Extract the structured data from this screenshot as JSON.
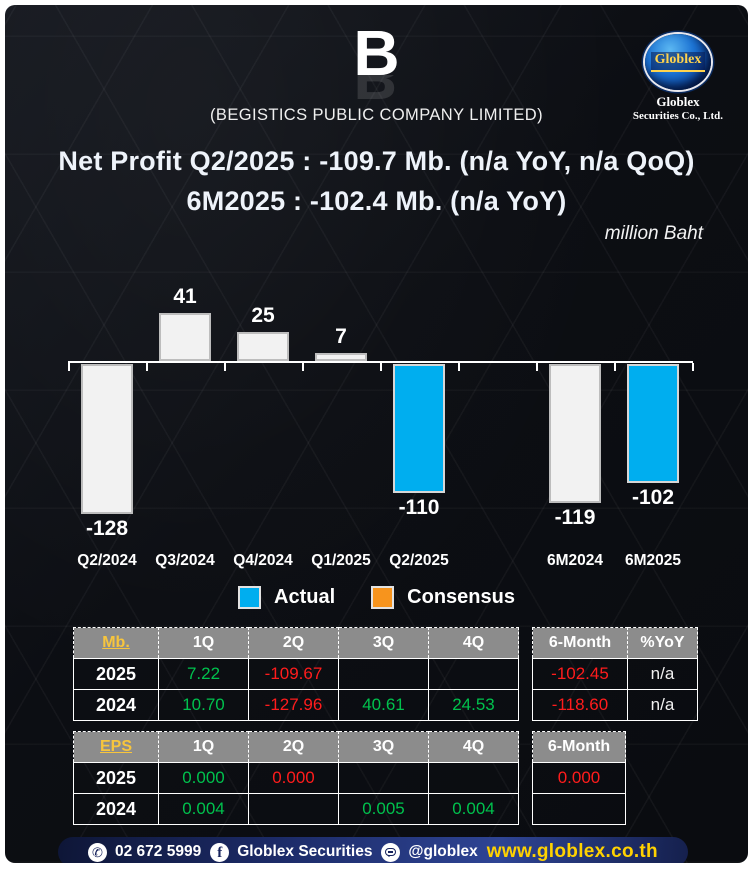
{
  "header": {
    "ticker": "B",
    "company": "(BEGISTICS PUBLIC COMPANY LIMITED)",
    "logo": {
      "globe_text": "Globlex",
      "line1": "Globlex",
      "line2": "Securities Co., Ltd."
    }
  },
  "title": {
    "line1": "Net Profit  Q2/2025 : -109.7 Mb. (n/a YoY, n/a QoQ)",
    "line2": "6M2025 : -102.4 Mb. (n/a YoY)",
    "unit": "million Baht"
  },
  "chart_data": {
    "type": "bar",
    "title": "Net Profit by quarter and 6-month period",
    "unit": "million Baht",
    "categories": [
      "Q2/2024",
      "Q3/2024",
      "Q4/2024",
      "Q1/2025",
      "Q2/2025",
      "6M2024",
      "6M2025"
    ],
    "bars": [
      {
        "label": "Q2/2024",
        "value": -128,
        "display": "-128",
        "series": "other",
        "group": "quarterly"
      },
      {
        "label": "Q3/2024",
        "value": 41,
        "display": "41",
        "series": "other",
        "group": "quarterly"
      },
      {
        "label": "Q4/2024",
        "value": 25,
        "display": "25",
        "series": "other",
        "group": "quarterly"
      },
      {
        "label": "Q1/2025",
        "value": 7,
        "display": "7",
        "series": "other",
        "group": "quarterly"
      },
      {
        "label": "Q2/2025",
        "value": -110,
        "display": "-110",
        "series": "actual",
        "group": "quarterly"
      },
      {
        "label": "6M2024",
        "value": -119,
        "display": "-119",
        "series": "other",
        "group": "sixmonth"
      },
      {
        "label": "6M2025",
        "value": -102,
        "display": "-102",
        "series": "actual",
        "group": "sixmonth"
      }
    ],
    "ylim": [
      -150,
      50
    ],
    "grid": false,
    "legend_position": "bottom",
    "legend": [
      {
        "label": "Actual",
        "color": "#00aeef"
      },
      {
        "label": "Consensus",
        "color": "#f7941d"
      }
    ]
  },
  "tables": {
    "mb": {
      "headers": [
        {
          "t": "Mb.",
          "gold": true
        },
        {
          "t": "1Q"
        },
        {
          "t": "2Q"
        },
        {
          "t": "3Q"
        },
        {
          "t": "4Q"
        }
      ],
      "rows": [
        {
          "label": "2025",
          "cells": [
            {
              "t": "7.22",
              "c": "green"
            },
            {
              "t": "-109.67",
              "c": "red"
            },
            {
              "t": ""
            },
            {
              "t": ""
            }
          ]
        },
        {
          "label": "2024",
          "cells": [
            {
              "t": "10.70",
              "c": "green"
            },
            {
              "t": "-127.96",
              "c": "red"
            },
            {
              "t": "40.61",
              "c": "green"
            },
            {
              "t": "24.53",
              "c": "green"
            }
          ]
        }
      ]
    },
    "mb_summary": {
      "headers": [
        {
          "t": "6-Month"
        },
        {
          "t": "%YoY"
        }
      ],
      "rows": [
        {
          "cells": [
            {
              "t": "-102.45",
              "c": "red"
            },
            {
              "t": "n/a",
              "c": "white"
            }
          ]
        },
        {
          "cells": [
            {
              "t": "-118.60",
              "c": "red"
            },
            {
              "t": "n/a",
              "c": "white"
            }
          ]
        }
      ]
    },
    "eps": {
      "headers": [
        {
          "t": "EPS",
          "gold": true
        },
        {
          "t": "1Q"
        },
        {
          "t": "2Q"
        },
        {
          "t": "3Q"
        },
        {
          "t": "4Q"
        }
      ],
      "rows": [
        {
          "label": "2025",
          "cells": [
            {
              "t": "0.000",
              "c": "green"
            },
            {
              "t": "0.000",
              "c": "red"
            },
            {
              "t": ""
            },
            {
              "t": ""
            }
          ]
        },
        {
          "label": "2024",
          "cells": [
            {
              "t": "0.004",
              "c": "green"
            },
            {
              "t": ""
            },
            {
              "t": "0.005",
              "c": "green"
            },
            {
              "t": "0.004",
              "c": "green"
            }
          ]
        }
      ]
    },
    "eps_summary": {
      "headers": [
        {
          "t": "6-Month"
        }
      ],
      "rows": [
        {
          "cells": [
            {
              "t": "0.000",
              "c": "red"
            }
          ]
        },
        {
          "cells": [
            {
              "t": ""
            }
          ]
        }
      ]
    }
  },
  "footer": {
    "phone": "02 672 5999",
    "facebook": "Globlex Securities",
    "line": "@globlex",
    "website": "www.globlex.co.th"
  },
  "colors": {
    "actual": "#00aeef",
    "consensus": "#f7941d",
    "bar_neutral": "#f2f2f2",
    "green": "#00c14d",
    "red": "#ff1c1c",
    "gold": "#f7c53d",
    "website_yellow": "#ffd200"
  }
}
